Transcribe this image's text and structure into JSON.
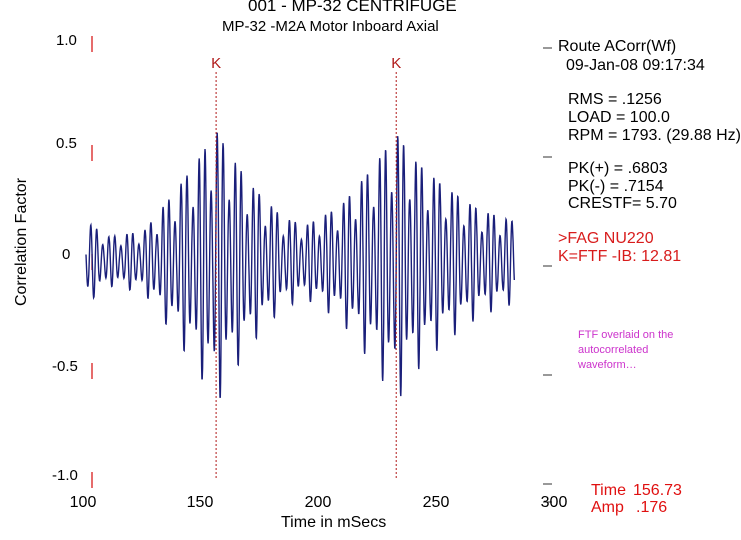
{
  "header": {
    "line1": "001  - MP-32 CENTRIFUGE",
    "line2": "MP-32    -M2A   Motor Inboard Axial"
  },
  "info": {
    "route": "Route ACorr(Wf)",
    "datetime": "09-Jan-08  09:17:34",
    "rms": "RMS =  .1256",
    "load": "LOAD = 100.0",
    "rpm": "RPM = 1793. (29.88 Hz)",
    "pk_pos": "PK(+) = .6803",
    "pk_neg": "PK(-) = .7154",
    "crest": "CRESTF= 5.70",
    "bearing": ">FAG NU220",
    "fault_freq": "K=FTF  -IB: 12.81"
  },
  "annotation": {
    "note": "FTF overlaid on the autocorrelated waveform…"
  },
  "cursor_readout": {
    "time_label": "Time",
    "time_value": "156.73",
    "amp_label": "Amp",
    "amp_value": ".176"
  },
  "chart_data": {
    "type": "line",
    "title": "001  - MP-32 CENTRIFUGE",
    "subtitle": "MP-32    -M2A   Motor Inboard Axial",
    "xlabel": "Time in mSecs",
    "ylabel": "Correlation Factor",
    "xlim": [
      100,
      300
    ],
    "ylim": [
      -1.0,
      1.0
    ],
    "x_ticks": [
      "100",
      "150",
      "200",
      "250",
      "300"
    ],
    "y_ticks": [
      "1.0",
      "0.5",
      "0",
      "-0.5",
      "-1.0"
    ],
    "grid": false,
    "series": [
      {
        "color": "#1a1f7a",
        "x_range": [
          100,
          285
        ],
        "envelope_points": [
          {
            "x": 100,
            "y": 0.2
          },
          {
            "x": 110,
            "y": 0.12
          },
          {
            "x": 125,
            "y": 0.15
          },
          {
            "x": 140,
            "y": 0.38
          },
          {
            "x": 150,
            "y": 0.55
          },
          {
            "x": 156,
            "y": 0.68
          },
          {
            "x": 162,
            "y": 0.55
          },
          {
            "x": 172,
            "y": 0.38
          },
          {
            "x": 185,
            "y": 0.22
          },
          {
            "x": 195,
            "y": 0.18
          },
          {
            "x": 210,
            "y": 0.28
          },
          {
            "x": 225,
            "y": 0.5
          },
          {
            "x": 234,
            "y": 0.66
          },
          {
            "x": 242,
            "y": 0.52
          },
          {
            "x": 255,
            "y": 0.38
          },
          {
            "x": 270,
            "y": 0.26
          },
          {
            "x": 285,
            "y": 0.2
          }
        ]
      }
    ],
    "markers": [
      {
        "label": "K",
        "x": 156.2,
        "color": "#b01818"
      },
      {
        "label": "K",
        "x": 234.0,
        "color": "#b01818"
      }
    ]
  }
}
